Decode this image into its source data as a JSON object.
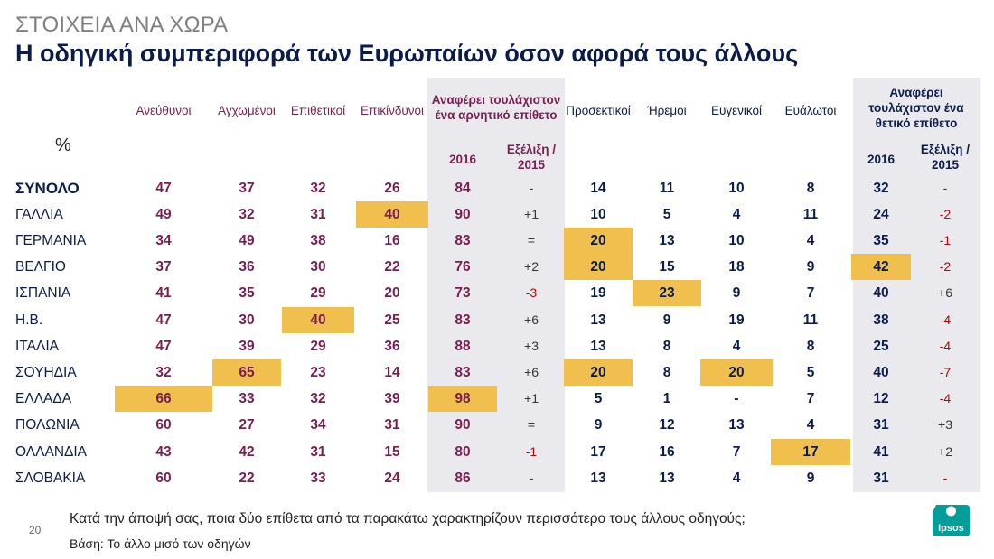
{
  "header": {
    "subtitle": "ΣΤΟΙΧΕΙΑ ΑΝΑ ΧΩΡΑ",
    "title": "Η οδηγική συμπεριφορά των Ευρωπαίων όσον αφορά τους άλλους"
  },
  "columns": {
    "negative": [
      "Ανεύθυνοι",
      "Αγχωμένοι",
      "Επιθετικοί",
      "Επικίνδυνοι"
    ],
    "negative_summary": "Αναφέρει τουλάχιστον ένα αρνητικό επίθετο",
    "positive": [
      "Προσεκτικοί",
      "Ήρεμοι",
      "Ευγενικοί",
      "Ευάλωτοι"
    ],
    "positive_summary": "Αναφέρει τουλάχιστον ένα θετικό επίθετο",
    "year": "2016",
    "evolution": "Εξέλιξη / 2015",
    "percent": "%"
  },
  "chart_data": {
    "type": "table",
    "title": "Η οδηγική συμπεριφορά των Ευρωπαίων όσον αφορά τους άλλους",
    "rows": [
      {
        "country": "ΣΥΝΟΛΟ",
        "neg": [
          "47",
          "37",
          "32",
          "26"
        ],
        "neg_total": "84",
        "neg_evo": "-",
        "pos": [
          "14",
          "11",
          "10",
          "8"
        ],
        "pos_total": "32",
        "pos_evo": "-"
      },
      {
        "country": "ΓΑΛΛΙΑ",
        "neg": [
          "49",
          "32",
          "31",
          "40"
        ],
        "neg_total": "90",
        "neg_evo": "+1",
        "pos": [
          "10",
          "5",
          "4",
          "11"
        ],
        "pos_total": "24",
        "pos_evo": "-2"
      },
      {
        "country": "ΓΕΡΜΑΝΙΑ",
        "neg": [
          "34",
          "49",
          "38",
          "16"
        ],
        "neg_total": "83",
        "neg_evo": "=",
        "pos": [
          "20",
          "13",
          "10",
          "4"
        ],
        "pos_total": "35",
        "pos_evo": "-1"
      },
      {
        "country": "ΒΕΛΓΙΟ",
        "neg": [
          "37",
          "36",
          "30",
          "22"
        ],
        "neg_total": "76",
        "neg_evo": "+2",
        "pos": [
          "20",
          "15",
          "18",
          "9"
        ],
        "pos_total": "42",
        "pos_evo": "-2"
      },
      {
        "country": "ΙΣΠΑΝΙΑ",
        "neg": [
          "41",
          "35",
          "29",
          "20"
        ],
        "neg_total": "73",
        "neg_evo": "-3",
        "pos": [
          "19",
          "23",
          "9",
          "7"
        ],
        "pos_total": "40",
        "pos_evo": "+6"
      },
      {
        "country": "Η.Β.",
        "neg": [
          "47",
          "30",
          "40",
          "25"
        ],
        "neg_total": "83",
        "neg_evo": "+6",
        "pos": [
          "13",
          "9",
          "19",
          "11"
        ],
        "pos_total": "38",
        "pos_evo": "-4"
      },
      {
        "country": "ΙΤΑΛΙΑ",
        "neg": [
          "47",
          "39",
          "29",
          "36"
        ],
        "neg_total": "88",
        "neg_evo": "+3",
        "pos": [
          "13",
          "8",
          "4",
          "8"
        ],
        "pos_total": "25",
        "pos_evo": "-4"
      },
      {
        "country": "ΣΟΥΗΔΙΑ",
        "neg": [
          "32",
          "65",
          "23",
          "14"
        ],
        "neg_total": "83",
        "neg_evo": "+6",
        "pos": [
          "20",
          "8",
          "20",
          "5"
        ],
        "pos_total": "40",
        "pos_evo": "-7"
      },
      {
        "country": "ΕΛΛΑΔΑ",
        "neg": [
          "66",
          "33",
          "32",
          "39"
        ],
        "neg_total": "98",
        "neg_evo": "+1",
        "pos": [
          "5",
          "1",
          "-",
          "7"
        ],
        "pos_total": "12",
        "pos_evo": "-4"
      },
      {
        "country": "ΠΟΛΩΝΙΑ",
        "neg": [
          "60",
          "27",
          "34",
          "31"
        ],
        "neg_total": "90",
        "neg_evo": "=",
        "pos": [
          "9",
          "12",
          "13",
          "4"
        ],
        "pos_total": "31",
        "pos_evo": "+3"
      },
      {
        "country": "ΟΛΛΑΝΔΙΑ",
        "neg": [
          "43",
          "42",
          "31",
          "15"
        ],
        "neg_total": "80",
        "neg_evo": "-1",
        "pos": [
          "17",
          "16",
          "7",
          "17"
        ],
        "pos_total": "41",
        "pos_evo": "+2"
      },
      {
        "country": "ΣΛΟΒΑΚΙΑ",
        "neg": [
          "60",
          "22",
          "33",
          "24"
        ],
        "neg_total": "86",
        "neg_evo": "-",
        "pos": [
          "13",
          "13",
          "4",
          "9"
        ],
        "pos_total": "31",
        "pos_evo": "-"
      }
    ],
    "highlights": [
      {
        "country": "ΓΑΛΛΙΑ",
        "column": "Επικίνδυνοι"
      },
      {
        "country": "ΓΕΡΜΑΝΙΑ",
        "column": "Προσεκτικοί"
      },
      {
        "country": "ΒΕΛΓΙΟ",
        "column": "Προσεκτικοί"
      },
      {
        "country": "ΒΕΛΓΙΟ",
        "column": "Θετικό 2016"
      },
      {
        "country": "ΙΣΠΑΝΙΑ",
        "column": "Ήρεμοι"
      },
      {
        "country": "Η.Β.",
        "column": "Επιθετικοί"
      },
      {
        "country": "ΣΟΥΗΔΙΑ",
        "column": "Αγχωμένοι"
      },
      {
        "country": "ΣΟΥΗΔΙΑ",
        "column": "Προσεκτικοί"
      },
      {
        "country": "ΣΟΥΗΔΙΑ",
        "column": "Ευγενικοί"
      },
      {
        "country": "ΕΛΛΑΔΑ",
        "column": "Ανεύθυνοι"
      },
      {
        "country": "ΕΛΛΑΔΑ",
        "column": "Αρνητικό 2016"
      },
      {
        "country": "ΟΛΛΑΝΔΙΑ",
        "column": "Ευάλωτοι"
      }
    ]
  },
  "footer": {
    "page_number": "20",
    "question": "Κατά την άποψή σας, ποια δύο επίθετα από τα παρακάτω χαρακτηρίζουν περισσότερο τους άλλους οδηγούς;",
    "base": "Βάση: Το άλλο μισό των οδηγών",
    "logo_text": "Ipsos",
    "logo_color": "#009d9a"
  },
  "colors": {
    "negative": "#7a1e52",
    "positive": "#0c1c4a",
    "highlight": "#f1bf4e",
    "shade": "#eaeaee",
    "evolution_negative": "#c00000"
  }
}
